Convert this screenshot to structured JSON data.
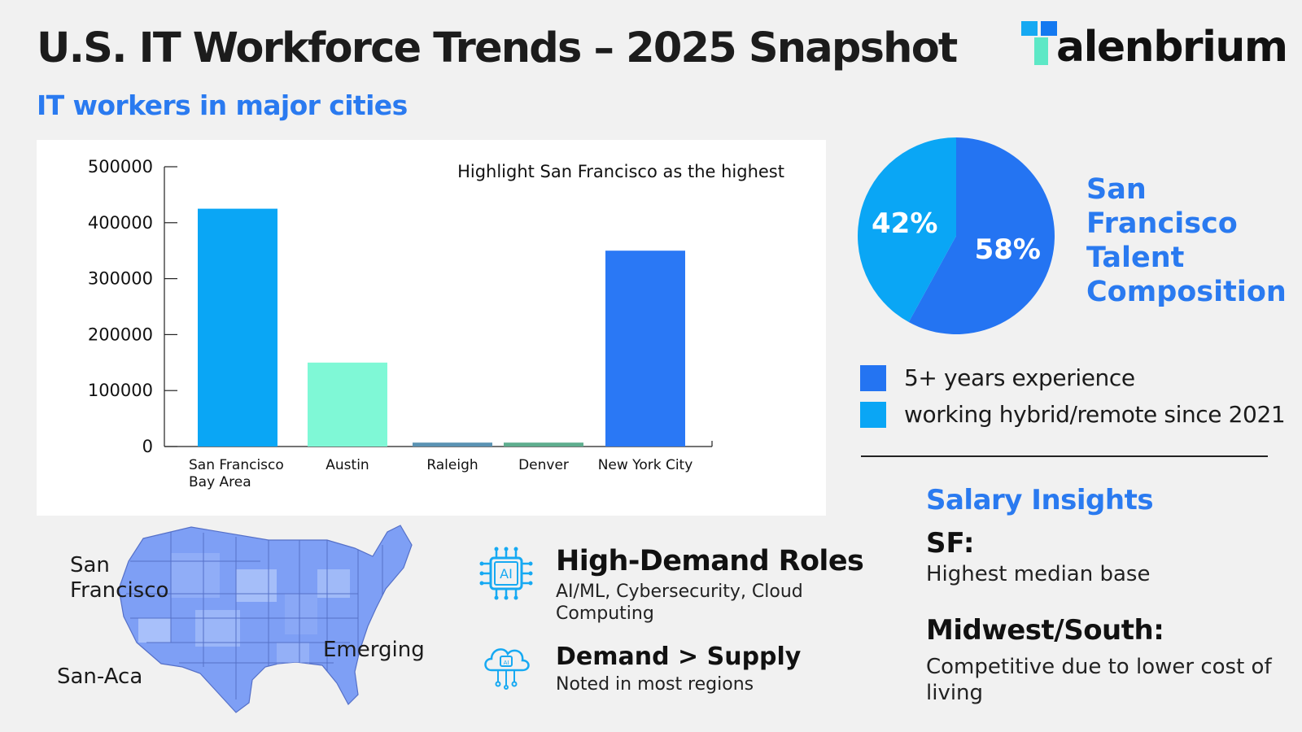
{
  "header": {
    "title": "U.S. IT Workforce Trends – 2025 Snapshot",
    "subtitle": "IT workers in major cities",
    "logo_text": "alenbrium",
    "logo_full": "Talenbrium"
  },
  "colors": {
    "accent_blue": "#2a7af0",
    "bar_sf": "#0aa6f5",
    "bar_austin": "#7ff8d6",
    "bar_raleigh": "#5b93b3",
    "bar_denver": "#5fae8f",
    "bar_nyc": "#2a78f5",
    "pie_experience": "#2474f2",
    "pie_hybrid": "#0aa6f5",
    "logo_teal": "#5de8c6",
    "logo_cyan": "#16a9f2"
  },
  "chart_data": [
    {
      "type": "bar",
      "title": "",
      "annotation": "Highlight San Francisco as the highest",
      "categories": [
        "San Francisco Bay Area",
        "Austin",
        "Raleigh",
        "Denver",
        "New York City"
      ],
      "category_lines": [
        [
          "San Francisco",
          "Bay Area"
        ],
        [
          "Austin"
        ],
        [
          "Raleigh"
        ],
        [
          "Denver"
        ],
        [
          "New York City"
        ]
      ],
      "values": [
        425000,
        150000,
        7000,
        7000,
        350000
      ],
      "ylim": [
        0,
        500000
      ],
      "yticks": [
        0,
        100000,
        200000,
        300000,
        400000,
        500000
      ],
      "xlabel": "",
      "ylabel": "",
      "grid": false
    },
    {
      "type": "pie",
      "title": "San Francisco Talent Composition",
      "slices": [
        {
          "label": "5+ years experience",
          "value": 58,
          "display": "58%"
        },
        {
          "label": "working hybrid/remote since 2021",
          "value": 42,
          "display": "42%"
        }
      ],
      "legend_position": "bottom"
    }
  ],
  "salary": {
    "heading": "Salary Insights",
    "sf_label": "SF:",
    "sf_text": "Highest median base",
    "mw_label": "Midwest/South:",
    "mw_text": "Competitive due to lower cost of living"
  },
  "map": {
    "label_sf": "San Francisco",
    "label_emerging": "Emerging",
    "label_sanaca": "San-Aca"
  },
  "insights": {
    "roles_icon": "ai-chip-icon",
    "roles_title": "High-Demand Roles",
    "roles_text": "AI/ML, Cybersecurity, Cloud Computing",
    "demand_icon": "ai-cloud-icon",
    "demand_title": "Demand > Supply",
    "demand_text": "Noted in most regions"
  }
}
